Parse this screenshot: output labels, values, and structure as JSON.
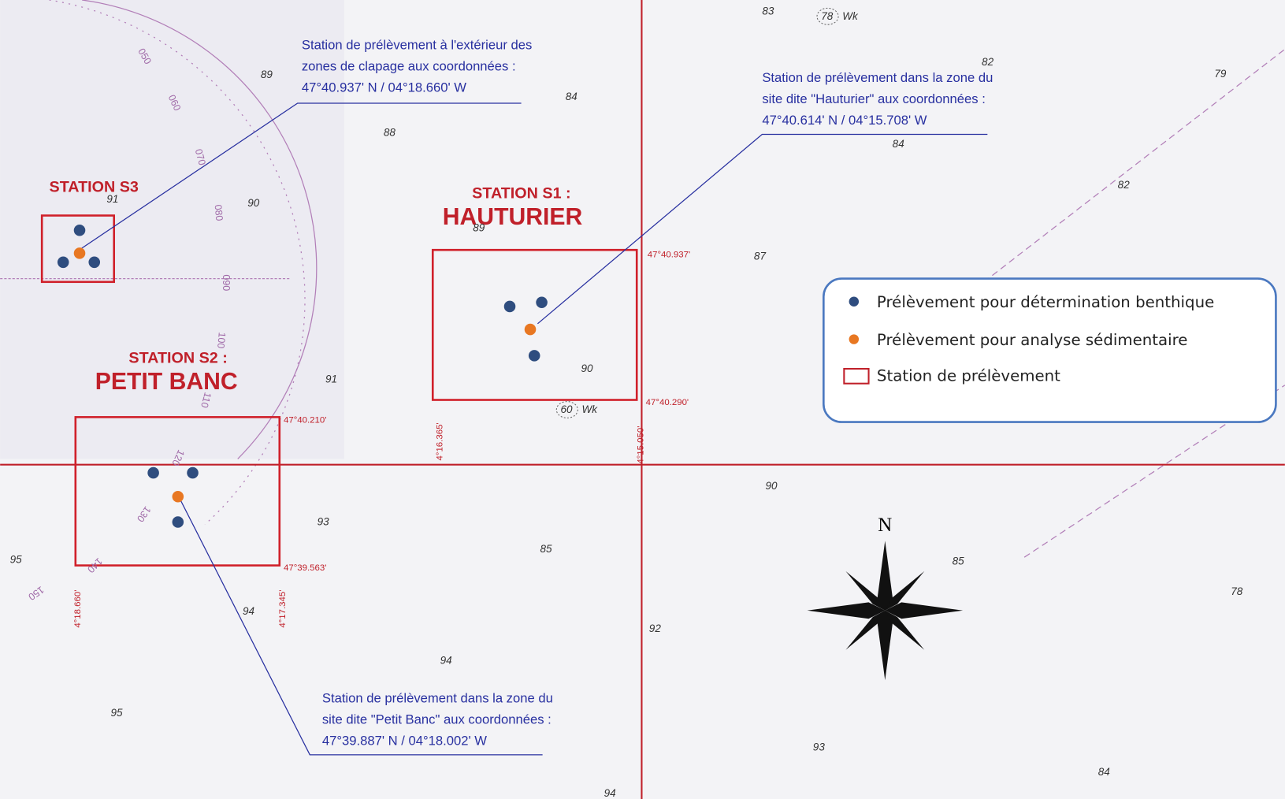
{
  "stations": [
    {
      "label": "STATION S3"
    },
    {
      "label": "STATION S1 :",
      "name": "HAUTURIER"
    },
    {
      "label": "STATION S2 :",
      "name": "PETIT BANC"
    }
  ],
  "callouts": [
    {
      "lines": [
        "Station de prélèvement à l'extérieur des",
        "zones de clapage aux coordonnées :",
        "47°40.937' N / 04°18.660' W"
      ]
    },
    {
      "lines": [
        "Station de prélèvement dans la zone du",
        "site dite \"Hauturier\" aux coordonnées :",
        "47°40.614' N / 04°15.708' W"
      ]
    },
    {
      "lines": [
        "Station de prélèvement dans la zone du",
        "site dite \"Petit Banc\" aux coordonnées :",
        "47°39.887' N / 04°18.002' W"
      ]
    }
  ],
  "coordinates": [
    "47°40.937'",
    "47°40.290'",
    "4°16.365'",
    "4°15.050'",
    "47°40.210'",
    "47°39.563'",
    "4°18.660'",
    "4°17.345'"
  ],
  "legend": [
    "Prélèvement pour détermination benthique",
    "Prélèvement pour analyse sédimentaire",
    "Station de prélèvement"
  ],
  "soundings": [
    83,
    89,
    84,
    88,
    82,
    79,
    84,
    91,
    90,
    89,
    82,
    87,
    90,
    91,
    90,
    93,
    85,
    95,
    85,
    94,
    92,
    78,
    94,
    95,
    93,
    84,
    94
  ],
  "wrecks": [
    {
      "depth": "78",
      "label": "Wk"
    },
    {
      "depth": "60",
      "label": "Wk"
    }
  ],
  "bearings": [
    "050",
    "060",
    "070",
    "080",
    "090",
    "100",
    "110",
    "120",
    "130",
    "140",
    "150"
  ],
  "compass": "N"
}
